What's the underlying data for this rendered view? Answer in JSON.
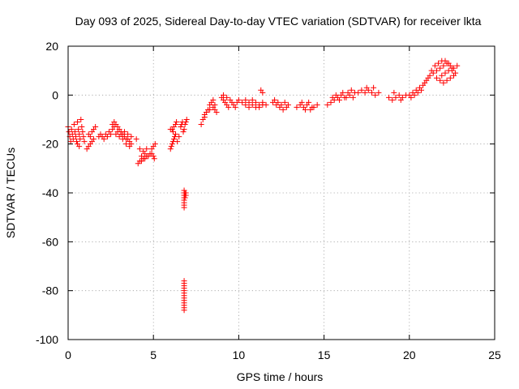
{
  "chart_data": {
    "type": "scatter",
    "title": "Day 093 of 2025, Sidereal Day-to-day VTEC variation (SDTVAR) for receiver lkta",
    "xlabel": "GPS time / hours",
    "ylabel": "SDTVAR / TECUs",
    "xlim": [
      0,
      25
    ],
    "ylim": [
      -100,
      20
    ],
    "xticks": [
      0,
      5,
      10,
      15,
      20,
      25
    ],
    "yticks": [
      -100,
      -80,
      -60,
      -40,
      -20,
      0,
      20
    ],
    "xtick_labels": [
      "0",
      "5",
      "10",
      "15",
      "20",
      "25"
    ],
    "ytick_labels": [
      "-100",
      "-80",
      "-60",
      "-40",
      "-20",
      "0",
      "20"
    ],
    "grid": true,
    "marker": "+",
    "series": [
      {
        "name": "SDTVAR",
        "color": "#ff0000",
        "points": [
          [
            0.0,
            -13
          ],
          [
            0.05,
            -15
          ],
          [
            0.1,
            -17
          ],
          [
            0.15,
            -19
          ],
          [
            0.2,
            -14
          ],
          [
            0.25,
            -16
          ],
          [
            0.3,
            -18
          ],
          [
            0.35,
            -12
          ],
          [
            0.4,
            -15
          ],
          [
            0.45,
            -17
          ],
          [
            0.5,
            -19
          ],
          [
            0.55,
            -11
          ],
          [
            0.6,
            -14
          ],
          [
            0.65,
            -16
          ],
          [
            0.7,
            -18
          ],
          [
            0.75,
            -10
          ],
          [
            0.8,
            -13
          ],
          [
            0.85,
            -15
          ],
          [
            0.9,
            -17
          ],
          [
            0.95,
            -19
          ],
          [
            0.55,
            -20
          ],
          [
            0.65,
            -21
          ],
          [
            1.1,
            -22
          ],
          [
            1.2,
            -21
          ],
          [
            1.3,
            -20
          ],
          [
            1.4,
            -19
          ],
          [
            1.5,
            -18
          ],
          [
            1.3,
            -17
          ],
          [
            1.4,
            -15
          ],
          [
            1.5,
            -14
          ],
          [
            1.2,
            -16
          ],
          [
            1.6,
            -13
          ],
          [
            1.8,
            -17
          ],
          [
            1.9,
            -16
          ],
          [
            2.0,
            -17
          ],
          [
            2.1,
            -18
          ],
          [
            2.2,
            -16
          ],
          [
            2.3,
            -17
          ],
          [
            2.4,
            -15
          ],
          [
            2.5,
            -16
          ],
          [
            2.6,
            -14
          ],
          [
            2.7,
            -13
          ],
          [
            2.6,
            -12
          ],
          [
            2.7,
            -11
          ],
          [
            2.8,
            -12
          ],
          [
            2.9,
            -13
          ],
          [
            3.0,
            -14
          ],
          [
            3.1,
            -15
          ],
          [
            3.2,
            -16
          ],
          [
            3.3,
            -17
          ],
          [
            3.4,
            -18
          ],
          [
            3.5,
            -18
          ],
          [
            3.6,
            -19
          ],
          [
            3.7,
            -20
          ],
          [
            3.0,
            -17
          ],
          [
            3.2,
            -18
          ],
          [
            3.4,
            -20
          ],
          [
            3.6,
            -21
          ],
          [
            2.8,
            -16
          ],
          [
            2.9,
            -15
          ],
          [
            3.1,
            -16
          ],
          [
            3.3,
            -15
          ],
          [
            3.5,
            -16
          ],
          [
            3.7,
            -17
          ],
          [
            4.0,
            -18
          ],
          [
            4.2,
            -22
          ],
          [
            4.4,
            -23
          ],
          [
            4.5,
            -24
          ],
          [
            4.6,
            -22
          ],
          [
            4.3,
            -25
          ],
          [
            4.1,
            -28
          ],
          [
            4.2,
            -27
          ],
          [
            4.3,
            -27
          ],
          [
            4.4,
            -26
          ],
          [
            4.5,
            -26
          ],
          [
            4.6,
            -25
          ],
          [
            4.7,
            -25
          ],
          [
            4.8,
            -24
          ],
          [
            4.9,
            -24
          ],
          [
            5.0,
            -25
          ],
          [
            5.05,
            -26
          ],
          [
            4.9,
            -22
          ],
          [
            5.0,
            -21
          ],
          [
            5.1,
            -20
          ],
          [
            6.0,
            -22
          ],
          [
            6.05,
            -21
          ],
          [
            6.1,
            -20
          ],
          [
            6.15,
            -19
          ],
          [
            6.2,
            -18
          ],
          [
            6.25,
            -17
          ],
          [
            6.3,
            -16
          ],
          [
            6.1,
            -14
          ],
          [
            6.2,
            -13
          ],
          [
            6.3,
            -12
          ],
          [
            6.35,
            -11
          ],
          [
            6.0,
            -14
          ],
          [
            6.15,
            -15
          ],
          [
            6.4,
            -19
          ],
          [
            6.5,
            -17
          ],
          [
            6.6,
            -13
          ],
          [
            6.65,
            -12
          ],
          [
            6.7,
            -11
          ],
          [
            6.75,
            -15
          ],
          [
            6.8,
            -14
          ],
          [
            6.85,
            -12
          ],
          [
            6.9,
            -11
          ],
          [
            6.95,
            -10
          ],
          [
            6.8,
            -39
          ],
          [
            6.8,
            -40
          ],
          [
            6.8,
            -41
          ],
          [
            6.8,
            -42
          ],
          [
            6.8,
            -43
          ],
          [
            6.8,
            -44
          ],
          [
            6.8,
            -45
          ],
          [
            6.8,
            -46
          ],
          [
            6.85,
            -40
          ],
          [
            6.85,
            -41
          ],
          [
            6.85,
            -42
          ],
          [
            6.9,
            -40
          ],
          [
            6.9,
            -41
          ],
          [
            6.8,
            -76
          ],
          [
            6.8,
            -77
          ],
          [
            6.8,
            -78
          ],
          [
            6.8,
            -79
          ],
          [
            6.8,
            -80
          ],
          [
            6.8,
            -81
          ],
          [
            6.8,
            -82
          ],
          [
            6.8,
            -83
          ],
          [
            6.8,
            -84
          ],
          [
            6.8,
            -85
          ],
          [
            6.8,
            -86
          ],
          [
            6.8,
            -87
          ],
          [
            6.8,
            -88
          ],
          [
            7.8,
            -12
          ],
          [
            7.9,
            -10
          ],
          [
            8.0,
            -8
          ],
          [
            8.1,
            -7
          ],
          [
            8.2,
            -6
          ],
          [
            8.0,
            -9
          ],
          [
            8.3,
            -4
          ],
          [
            8.4,
            -3
          ],
          [
            8.5,
            -5
          ],
          [
            8.6,
            -6
          ],
          [
            8.7,
            -7
          ],
          [
            8.3,
            -6
          ],
          [
            8.5,
            -2
          ],
          [
            8.6,
            -4
          ],
          [
            9.0,
            -1
          ],
          [
            9.1,
            -2
          ],
          [
            9.2,
            -3
          ],
          [
            9.3,
            -4
          ],
          [
            9.4,
            -5
          ],
          [
            9.1,
            0
          ],
          [
            9.3,
            -1
          ],
          [
            9.5,
            -2
          ],
          [
            9.6,
            -3
          ],
          [
            9.7,
            -4
          ],
          [
            9.8,
            -5
          ],
          [
            9.9,
            -3
          ],
          [
            10.0,
            -2
          ],
          [
            10.2,
            -3
          ],
          [
            10.4,
            -4
          ],
          [
            10.6,
            -3
          ],
          [
            10.8,
            -4
          ],
          [
            11.0,
            -5
          ],
          [
            11.2,
            -4
          ],
          [
            11.4,
            -3
          ],
          [
            11.6,
            -4
          ],
          [
            10.4,
            -2
          ],
          [
            10.6,
            -5
          ],
          [
            10.8,
            -2
          ],
          [
            11.0,
            -3
          ],
          [
            11.2,
            -5
          ],
          [
            11.4,
            -4
          ],
          [
            11.3,
            2
          ],
          [
            11.4,
            1
          ],
          [
            12.0,
            -3
          ],
          [
            12.2,
            -4
          ],
          [
            12.4,
            -5
          ],
          [
            12.6,
            -6
          ],
          [
            12.8,
            -5
          ],
          [
            12.1,
            -2
          ],
          [
            12.3,
            -3
          ],
          [
            12.5,
            -4
          ],
          [
            12.7,
            -3
          ],
          [
            12.9,
            -4
          ],
          [
            13.4,
            -5
          ],
          [
            13.6,
            -4
          ],
          [
            13.8,
            -5
          ],
          [
            14.0,
            -4
          ],
          [
            14.2,
            -6
          ],
          [
            14.4,
            -5
          ],
          [
            14.6,
            -4
          ],
          [
            13.7,
            -3
          ],
          [
            13.9,
            -6
          ],
          [
            14.1,
            -3
          ],
          [
            14.3,
            -5
          ],
          [
            15.2,
            -4
          ],
          [
            15.4,
            -3
          ],
          [
            15.6,
            -2
          ],
          [
            15.8,
            -1
          ],
          [
            16.0,
            0
          ],
          [
            16.2,
            -1
          ],
          [
            16.4,
            1
          ],
          [
            16.6,
            2
          ],
          [
            16.8,
            1
          ],
          [
            15.5,
            -1
          ],
          [
            15.7,
            0
          ],
          [
            15.9,
            -2
          ],
          [
            16.1,
            1
          ],
          [
            16.3,
            -1
          ],
          [
            16.5,
            0
          ],
          [
            16.7,
            -1
          ],
          [
            17.0,
            1
          ],
          [
            17.2,
            2
          ],
          [
            17.4,
            1
          ],
          [
            17.6,
            2
          ],
          [
            17.8,
            1
          ],
          [
            18.0,
            0
          ],
          [
            18.2,
            1
          ],
          [
            17.5,
            3
          ],
          [
            17.9,
            3
          ],
          [
            18.8,
            -1
          ],
          [
            19.0,
            -2
          ],
          [
            19.2,
            -1
          ],
          [
            19.4,
            0
          ],
          [
            19.6,
            -1
          ],
          [
            19.8,
            0
          ],
          [
            19.1,
            1
          ],
          [
            19.5,
            -2
          ],
          [
            20.0,
            0
          ],
          [
            20.2,
            1
          ],
          [
            20.4,
            2
          ],
          [
            20.6,
            3
          ],
          [
            20.8,
            4
          ],
          [
            21.0,
            6
          ],
          [
            21.2,
            8
          ],
          [
            21.4,
            9
          ],
          [
            21.6,
            10
          ],
          [
            21.8,
            11
          ],
          [
            22.0,
            12
          ],
          [
            22.2,
            13
          ],
          [
            22.4,
            12
          ],
          [
            22.6,
            11
          ],
          [
            22.8,
            12
          ],
          [
            20.1,
            -1
          ],
          [
            20.3,
            0
          ],
          [
            20.5,
            1
          ],
          [
            20.7,
            2
          ],
          [
            20.9,
            5
          ],
          [
            21.1,
            7
          ],
          [
            21.3,
            10
          ],
          [
            21.5,
            12
          ],
          [
            21.7,
            13
          ],
          [
            21.9,
            14
          ],
          [
            22.1,
            14
          ],
          [
            22.3,
            13
          ],
          [
            22.5,
            10
          ],
          [
            22.7,
            9
          ],
          [
            21.6,
            7
          ],
          [
            21.8,
            6
          ],
          [
            22.0,
            5
          ],
          [
            22.2,
            6
          ],
          [
            22.4,
            7
          ],
          [
            22.6,
            8
          ],
          [
            21.9,
            8
          ],
          [
            22.1,
            9
          ],
          [
            22.3,
            10
          ],
          [
            22.5,
            11
          ]
        ]
      }
    ]
  }
}
